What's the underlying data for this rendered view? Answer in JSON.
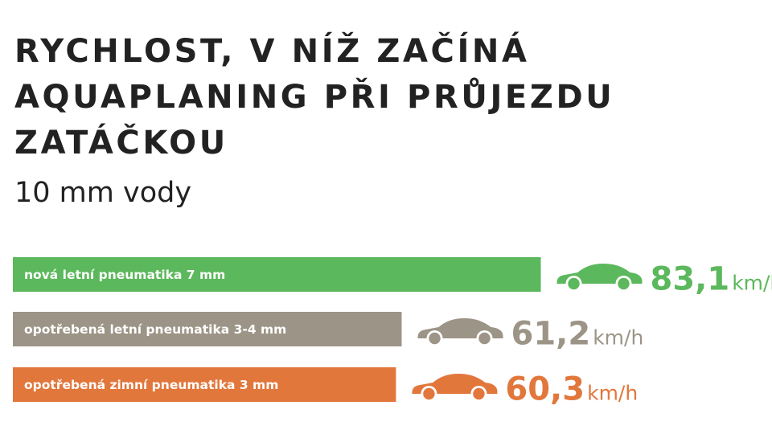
{
  "title_lines": [
    "RYCHLOST, V NÍŽ ZAČÍNÁ",
    "AQUAPLANING PŘI PRŮJEZDU",
    "ZATÁČKOU"
  ],
  "subtitle": "10 mm vody",
  "colors": {
    "new_summer": "#5cb85c",
    "worn_summer": "#9c9486",
    "worn_winter": "#e2773c",
    "title": "#222222"
  },
  "car_icon": "car-icon",
  "chart_data": {
    "type": "bar",
    "orientation": "horizontal",
    "title": "RYCHLOST, V NÍŽ ZAČÍNÁ AQUAPLANING PŘI PRŮJEZDU ZATÁČKOU",
    "subtitle": "10 mm vody",
    "unit": "km/h",
    "categories": [
      "nová letní pneumatika 7 mm",
      "opotřebená letní pneumatika 3-4 mm",
      "opotřebená zimní pneumatika 3 mm"
    ],
    "values": [
      83.1,
      61.2,
      60.3
    ],
    "value_labels": [
      "83,1",
      "61,2",
      "60,3"
    ],
    "xlim": [
      0,
      100
    ],
    "grid": false,
    "legend": "none"
  }
}
